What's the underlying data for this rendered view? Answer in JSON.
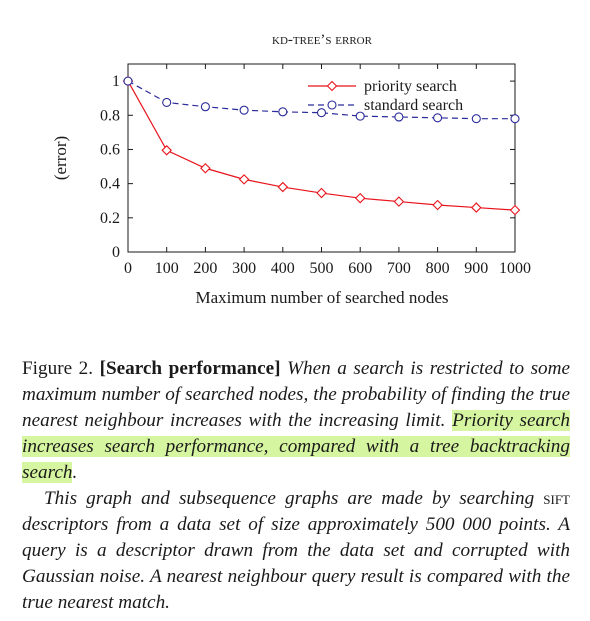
{
  "chart_data": {
    "type": "line",
    "title": "kd-tree’s error",
    "xlabel": "Maximum number of searched nodes",
    "ylabel": "(error)",
    "xlim": [
      0,
      1000
    ],
    "ylim": [
      0,
      1.1
    ],
    "x_ticks": [
      "0",
      "100",
      "200",
      "300",
      "400",
      "500",
      "600",
      "700",
      "800",
      "900",
      "1000"
    ],
    "y_ticks": [
      "0",
      "0.2",
      "0.4",
      "0.6",
      "0.8",
      "1"
    ],
    "x": [
      0,
      100,
      200,
      300,
      400,
      500,
      600,
      700,
      800,
      900,
      1000
    ],
    "series": [
      {
        "name": "priority search",
        "color": "#e8141c",
        "marker": "diamond",
        "dash": "solid",
        "values": [
          1.0,
          0.595,
          0.49,
          0.425,
          0.38,
          0.345,
          0.315,
          0.295,
          0.275,
          0.26,
          0.245
        ]
      },
      {
        "name": "standard search",
        "color": "#2a2a9a",
        "marker": "circle",
        "dash": "dashed",
        "values": [
          1.0,
          0.875,
          0.85,
          0.83,
          0.82,
          0.815,
          0.795,
          0.79,
          0.785,
          0.78,
          0.78
        ]
      }
    ],
    "legend_position": "top-right",
    "grid": false
  },
  "caption": {
    "label": "Figure 2.",
    "heading": "[Search performance]",
    "text1": "When a search is restricted to some maximum number of searched nodes, the probability of finding the true nearest neighbour increases with the increasing limit.",
    "highlight": "Priority search increases search performance, compared with a tree backtracking search",
    "highlight_end": ".",
    "p2_a": "This graph and subsequence graphs are made by searching",
    "p2_sift": "sift",
    "p2_b": "descriptors from a data set of size approximately 500 000 points. A query is a descriptor drawn from the data set and corrupted with Gaussian noise. A nearest neighbour query result is compared with the true nearest match."
  }
}
